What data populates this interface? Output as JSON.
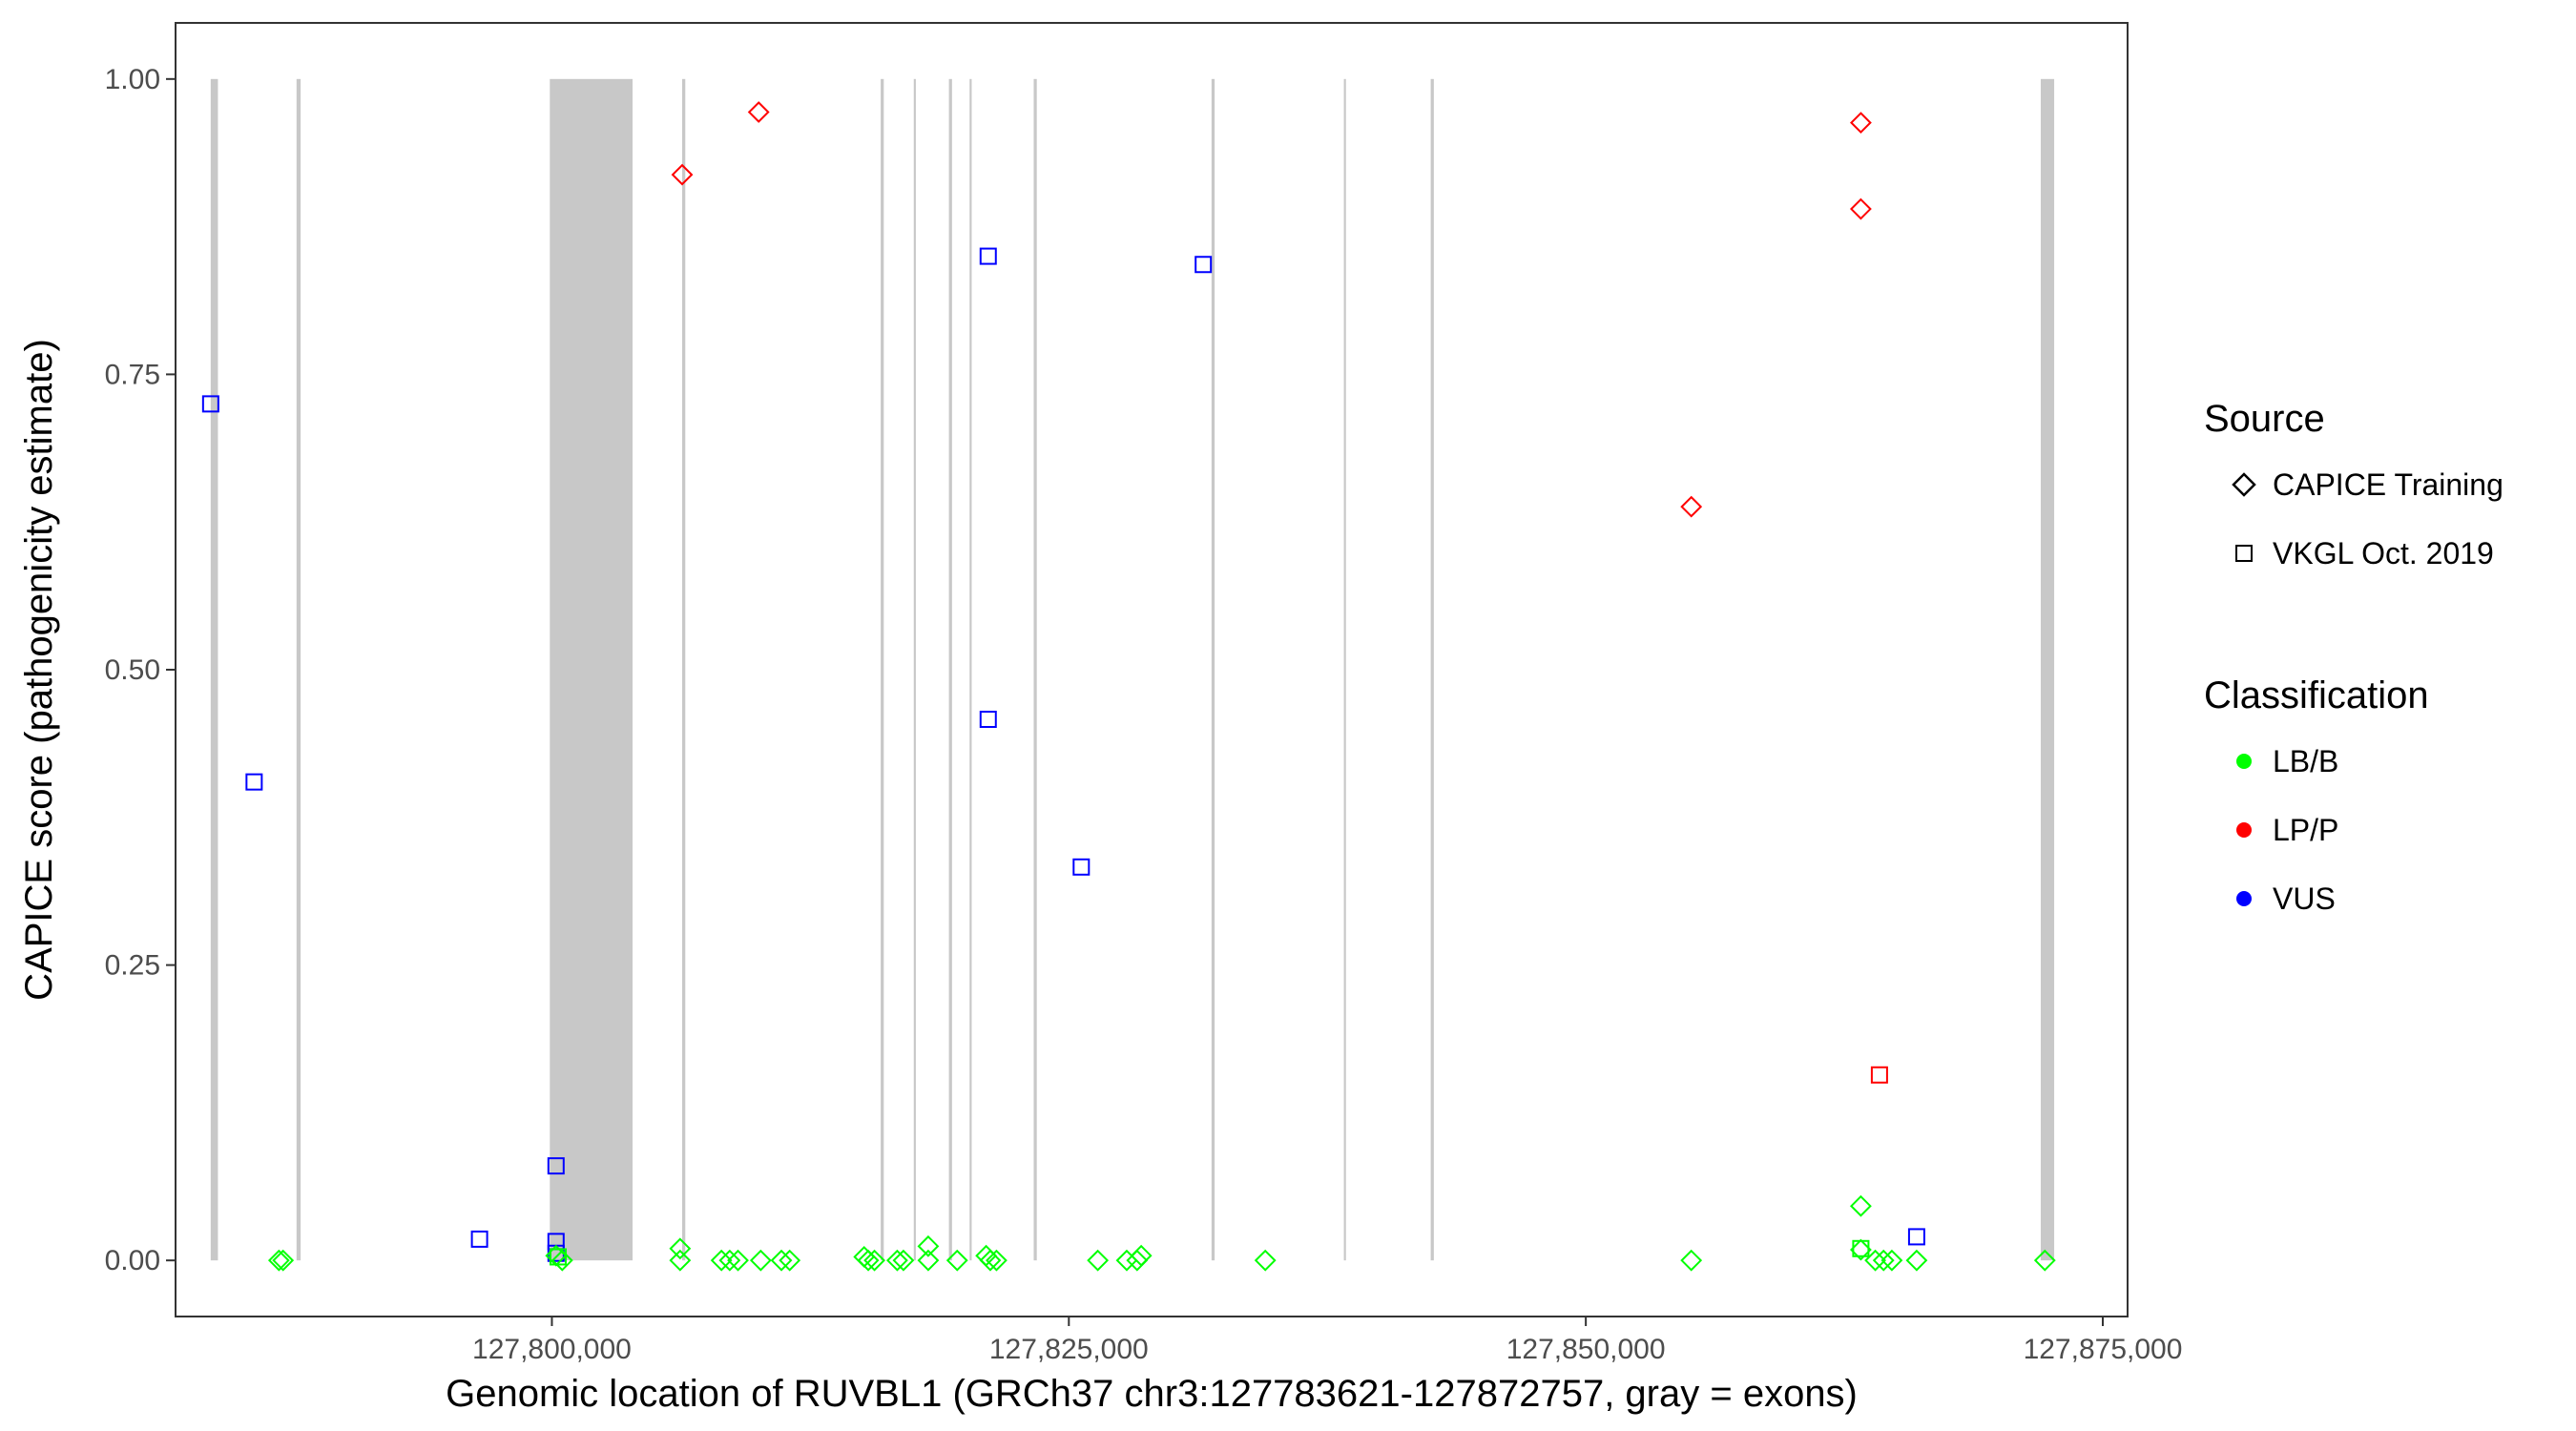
{
  "chart_data": {
    "type": "scatter",
    "xlabel": "Genomic location of RUVBL1 (GRCh37 chr3:127783621-127872757, gray = exons)",
    "ylabel": "CAPICE score (pathogenicity estimate)",
    "xlim": [
      127781800,
      127876200
    ],
    "ylim": [
      -0.0475,
      1.0475
    ],
    "x_ticks": [
      127800000,
      127825000,
      127850000,
      127875000
    ],
    "x_tick_labels": [
      "127,800,000",
      "127,825,000",
      "127,850,000",
      "127,875,000"
    ],
    "y_ticks": [
      0,
      0.25,
      0.5,
      0.75,
      1.0
    ],
    "y_tick_labels": [
      "0.00",
      "0.25",
      "0.50",
      "0.75",
      "1.00"
    ],
    "grid": false,
    "exon_band_range": [
      0,
      1
    ],
    "exons": [
      [
        127783500,
        127783850
      ],
      [
        127787650,
        127787850
      ],
      [
        127799900,
        127803900
      ],
      [
        127806300,
        127806450
      ],
      [
        127815900,
        127816050
      ],
      [
        127817500,
        127817600
      ],
      [
        127819200,
        127819350
      ],
      [
        127820200,
        127820300
      ],
      [
        127823300,
        127823450
      ],
      [
        127831900,
        127832050
      ],
      [
        127838300,
        127838400
      ],
      [
        127842500,
        127842650
      ],
      [
        127872000,
        127872650
      ]
    ],
    "colors": {
      "LB/B": "#00ff00",
      "LP/P": "#ff0000",
      "VUS": "#0000ff",
      "exon": "#c8c8c8"
    },
    "legend": {
      "position": "right",
      "source_title": "Source",
      "source_items": [
        {
          "label": "CAPICE Training",
          "shape": "diamond"
        },
        {
          "label": "VKGL Oct. 2019",
          "shape": "square"
        }
      ],
      "classification_title": "Classification",
      "classification_items": [
        {
          "label": "LB/B",
          "color": "#00ff00"
        },
        {
          "label": "LP/P",
          "color": "#ff0000"
        },
        {
          "label": "VUS",
          "color": "#0000ff"
        }
      ]
    },
    "points": [
      {
        "x": 127783500,
        "y": 0.725,
        "source": "VKGL Oct. 2019",
        "class": "VUS"
      },
      {
        "x": 127785600,
        "y": 0.405,
        "source": "VKGL Oct. 2019",
        "class": "VUS"
      },
      {
        "x": 127796500,
        "y": 0.018,
        "source": "VKGL Oct. 2019",
        "class": "VUS"
      },
      {
        "x": 127800200,
        "y": 0.08,
        "source": "VKGL Oct. 2019",
        "class": "VUS"
      },
      {
        "x": 127800200,
        "y": 0.016,
        "source": "VKGL Oct. 2019",
        "class": "VUS"
      },
      {
        "x": 127800200,
        "y": 0.006,
        "source": "VKGL Oct. 2019",
        "class": "VUS"
      },
      {
        "x": 127821100,
        "y": 0.85,
        "source": "VKGL Oct. 2019",
        "class": "VUS"
      },
      {
        "x": 127821100,
        "y": 0.458,
        "source": "VKGL Oct. 2019",
        "class": "VUS"
      },
      {
        "x": 127825600,
        "y": 0.333,
        "source": "VKGL Oct. 2019",
        "class": "VUS"
      },
      {
        "x": 127831500,
        "y": 0.843,
        "source": "VKGL Oct. 2019",
        "class": "VUS"
      },
      {
        "x": 127866000,
        "y": 0.02,
        "source": "VKGL Oct. 2019",
        "class": "VUS"
      },
      {
        "x": 127864200,
        "y": 0.157,
        "source": "VKGL Oct. 2019",
        "class": "LP/P"
      },
      {
        "x": 127863300,
        "y": 0.01,
        "source": "VKGL Oct. 2019",
        "class": "LB/B"
      },
      {
        "x": 127800300,
        "y": 0.003,
        "source": "VKGL Oct. 2019",
        "class": "LB/B"
      },
      {
        "x": 127806300,
        "y": 0.919,
        "source": "CAPICE Training",
        "class": "LP/P"
      },
      {
        "x": 127810000,
        "y": 0.972,
        "source": "CAPICE Training",
        "class": "LP/P"
      },
      {
        "x": 127855100,
        "y": 0.638,
        "source": "CAPICE Training",
        "class": "LP/P"
      },
      {
        "x": 127863300,
        "y": 0.963,
        "source": "CAPICE Training",
        "class": "LP/P"
      },
      {
        "x": 127863300,
        "y": 0.89,
        "source": "CAPICE Training",
        "class": "LP/P"
      },
      {
        "x": 127786800,
        "y": 0.0,
        "source": "CAPICE Training",
        "class": "LB/B"
      },
      {
        "x": 127787000,
        "y": 0.0,
        "source": "CAPICE Training",
        "class": "LB/B"
      },
      {
        "x": 127800200,
        "y": 0.004,
        "source": "CAPICE Training",
        "class": "LB/B"
      },
      {
        "x": 127800500,
        "y": 0.0,
        "source": "CAPICE Training",
        "class": "LB/B"
      },
      {
        "x": 127806200,
        "y": 0.01,
        "source": "CAPICE Training",
        "class": "LB/B"
      },
      {
        "x": 127806200,
        "y": 0.0,
        "source": "CAPICE Training",
        "class": "LB/B"
      },
      {
        "x": 127808200,
        "y": 0.0,
        "source": "CAPICE Training",
        "class": "LB/B"
      },
      {
        "x": 127808600,
        "y": 0.0,
        "source": "CAPICE Training",
        "class": "LB/B"
      },
      {
        "x": 127809000,
        "y": 0.0,
        "source": "CAPICE Training",
        "class": "LB/B"
      },
      {
        "x": 127810100,
        "y": 0.0,
        "source": "CAPICE Training",
        "class": "LB/B"
      },
      {
        "x": 127811100,
        "y": 0.0,
        "source": "CAPICE Training",
        "class": "LB/B"
      },
      {
        "x": 127811500,
        "y": 0.0,
        "source": "CAPICE Training",
        "class": "LB/B"
      },
      {
        "x": 127815100,
        "y": 0.003,
        "source": "CAPICE Training",
        "class": "LB/B"
      },
      {
        "x": 127815300,
        "y": 0.0,
        "source": "CAPICE Training",
        "class": "LB/B"
      },
      {
        "x": 127815600,
        "y": 0.0,
        "source": "CAPICE Training",
        "class": "LB/B"
      },
      {
        "x": 127816700,
        "y": 0.0,
        "source": "CAPICE Training",
        "class": "LB/B"
      },
      {
        "x": 127817000,
        "y": 0.0,
        "source": "CAPICE Training",
        "class": "LB/B"
      },
      {
        "x": 127818200,
        "y": 0.012,
        "source": "CAPICE Training",
        "class": "LB/B"
      },
      {
        "x": 127818200,
        "y": 0.0,
        "source": "CAPICE Training",
        "class": "LB/B"
      },
      {
        "x": 127819600,
        "y": 0.0,
        "source": "CAPICE Training",
        "class": "LB/B"
      },
      {
        "x": 127821000,
        "y": 0.004,
        "source": "CAPICE Training",
        "class": "LB/B"
      },
      {
        "x": 127821200,
        "y": 0.0,
        "source": "CAPICE Training",
        "class": "LB/B"
      },
      {
        "x": 127821500,
        "y": 0.0,
        "source": "CAPICE Training",
        "class": "LB/B"
      },
      {
        "x": 127826400,
        "y": 0.0,
        "source": "CAPICE Training",
        "class": "LB/B"
      },
      {
        "x": 127827800,
        "y": 0.0,
        "source": "CAPICE Training",
        "class": "LB/B"
      },
      {
        "x": 127828300,
        "y": 0.0,
        "source": "CAPICE Training",
        "class": "LB/B"
      },
      {
        "x": 127828500,
        "y": 0.004,
        "source": "CAPICE Training",
        "class": "LB/B"
      },
      {
        "x": 127834500,
        "y": 0.0,
        "source": "CAPICE Training",
        "class": "LB/B"
      },
      {
        "x": 127855100,
        "y": 0.0,
        "source": "CAPICE Training",
        "class": "LB/B"
      },
      {
        "x": 127863300,
        "y": 0.046,
        "source": "CAPICE Training",
        "class": "LB/B"
      },
      {
        "x": 127863300,
        "y": 0.009,
        "source": "CAPICE Training",
        "class": "LB/B"
      },
      {
        "x": 127864000,
        "y": 0.0,
        "source": "CAPICE Training",
        "class": "LB/B"
      },
      {
        "x": 127864400,
        "y": 0.0,
        "source": "CAPICE Training",
        "class": "LB/B"
      },
      {
        "x": 127864800,
        "y": 0.0,
        "source": "CAPICE Training",
        "class": "LB/B"
      },
      {
        "x": 127866000,
        "y": 0.0,
        "source": "CAPICE Training",
        "class": "LB/B"
      },
      {
        "x": 127872200,
        "y": 0.0,
        "source": "CAPICE Training",
        "class": "LB/B"
      }
    ]
  }
}
